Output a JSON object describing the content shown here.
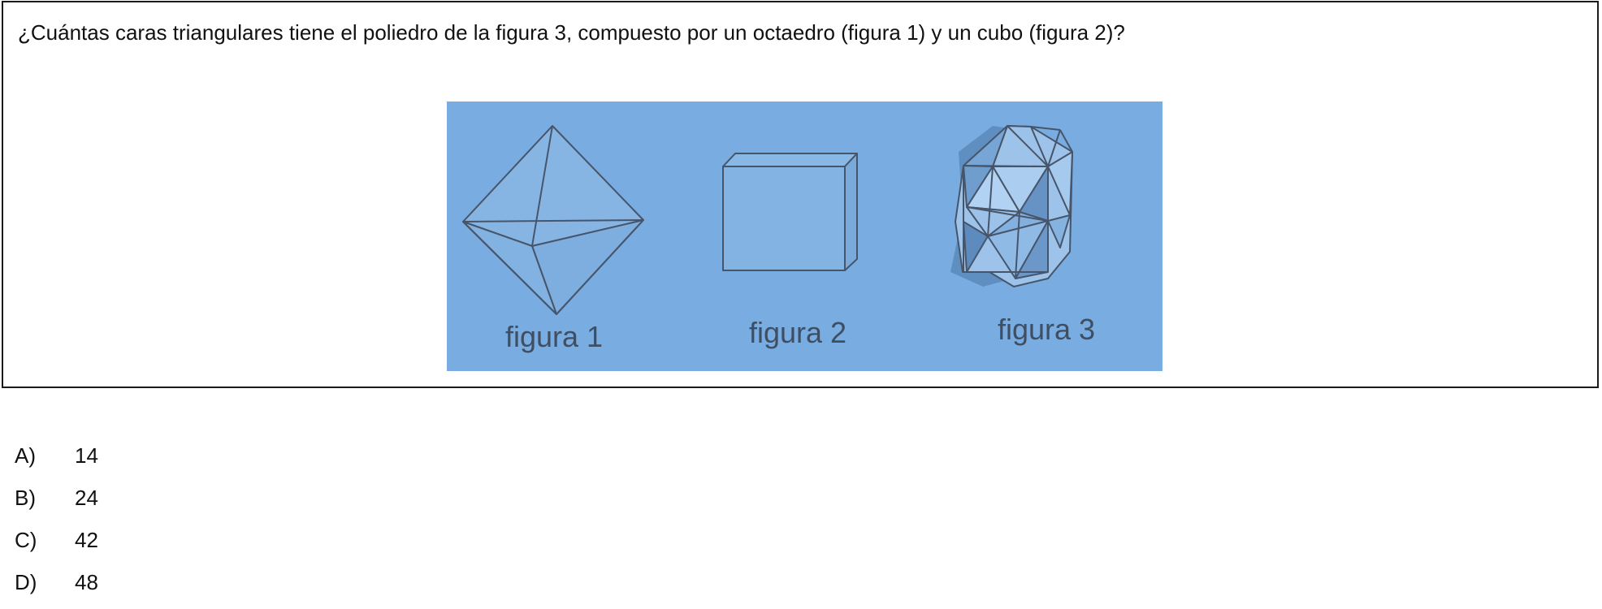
{
  "question": {
    "text": "¿Cuántas caras triangulares tiene el poliedro de la figura 3, compuesto por un octaedro (figura 1) y un cubo (figura 2)?"
  },
  "figure": {
    "panel_color": "#79ace0",
    "line_color": "#47556a",
    "labels": [
      "figura 1",
      "figura 2",
      "figura 3"
    ]
  },
  "options": [
    {
      "letter": "A)",
      "value": "14"
    },
    {
      "letter": "B)",
      "value": "24"
    },
    {
      "letter": "C)",
      "value": "42"
    },
    {
      "letter": "D)",
      "value": "48"
    }
  ]
}
